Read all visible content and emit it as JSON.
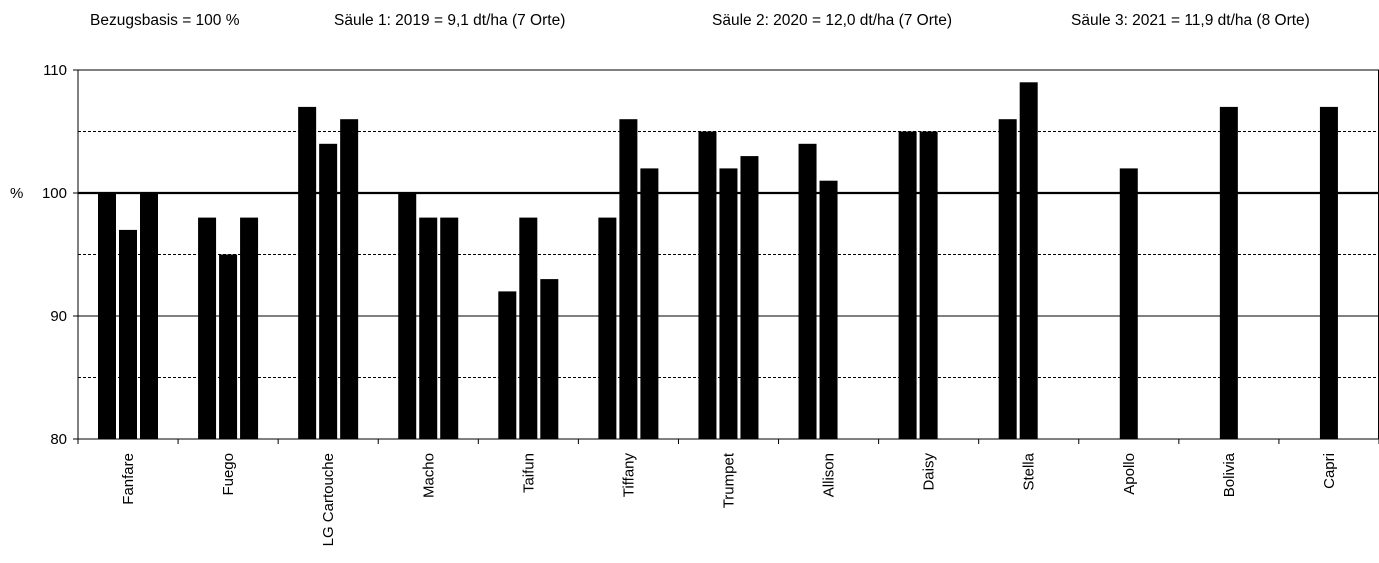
{
  "header": {
    "basis": "Bezugsbasis = 100 %",
    "col1": "Säule 1: 2019 = 9,1 dt/ha (7 Orte)",
    "col2": "Säule 2: 2020 = 12,0 dt/ha (7 Orte)",
    "col3": "Säule 3: 2021 = 11,9 dt/ha (8 Orte)"
  },
  "chart_data": {
    "type": "bar",
    "ylabel": "%",
    "ylim": [
      80,
      110
    ],
    "yticks": [
      80,
      90,
      100,
      110
    ],
    "y_tick_labels": [
      "80",
      "90",
      "100",
      "110"
    ],
    "reference_line": 100,
    "dashed_gridlines": [
      85,
      95,
      105
    ],
    "solid_gridlines": [
      90,
      110
    ],
    "bar_color": "#000000",
    "categories": [
      "Fanfare",
      "Fuego",
      "LG Cartouche",
      "Macho",
      "Taifun",
      "Tiffany",
      "Trumpet",
      "Allison",
      "Daisy",
      "Stella",
      "Apollo",
      "Bolivia",
      "Capri"
    ],
    "series": [
      {
        "values": [
          100,
          98,
          107,
          100,
          92,
          98,
          105,
          104,
          105,
          106,
          null,
          null,
          null
        ]
      },
      {
        "values": [
          97,
          95,
          104,
          98,
          98,
          106,
          102,
          101,
          105,
          109,
          102,
          107,
          107
        ]
      },
      {
        "values": [
          100,
          98,
          106,
          98,
          93,
          102,
          103,
          null,
          null,
          null,
          null,
          null,
          null
        ]
      }
    ]
  }
}
